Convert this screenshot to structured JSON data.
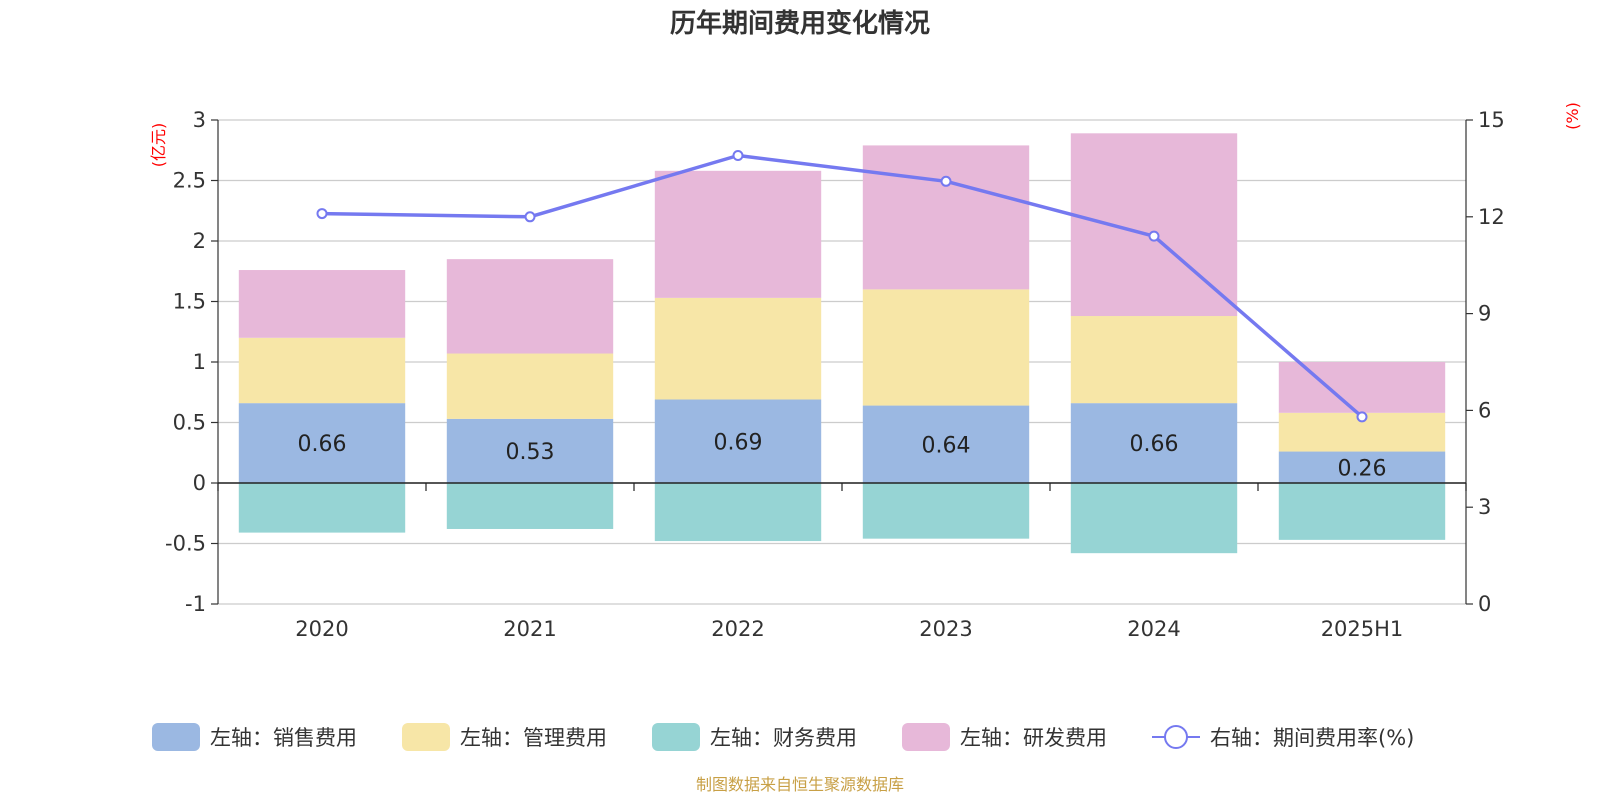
{
  "chart_data": {
    "type": "bar",
    "title": "历年期间费用变化情况",
    "categories": [
      "2020",
      "2021",
      "2022",
      "2023",
      "2024",
      "2025H1"
    ],
    "left_axis": {
      "unit": "(亿元)",
      "ylim": [
        -1,
        3
      ],
      "ticks": [
        "-1",
        "-0.5",
        "0",
        "0.5",
        "1",
        "1.5",
        "2",
        "2.5",
        "3"
      ]
    },
    "right_axis": {
      "unit": "(%)",
      "ylim": [
        0,
        15
      ],
      "ticks": [
        "0",
        "3",
        "6",
        "9",
        "12",
        "15"
      ]
    },
    "series": [
      {
        "name": "左轴：销售费用",
        "type": "bar",
        "stack": "pos",
        "color": "#9bb8e2",
        "values": [
          0.66,
          0.53,
          0.69,
          0.64,
          0.66,
          0.26
        ],
        "labels": [
          "0.66",
          "0.53",
          "0.69",
          "0.64",
          "0.66",
          "0.26"
        ]
      },
      {
        "name": "左轴：管理费用",
        "type": "bar",
        "stack": "pos",
        "color": "#f7e6a7",
        "values": [
          0.54,
          0.54,
          0.84,
          0.96,
          0.72,
          0.32
        ]
      },
      {
        "name": "左轴：财务费用",
        "type": "bar",
        "stack": "neg",
        "color": "#96d4d4",
        "values": [
          -0.41,
          -0.38,
          -0.48,
          -0.46,
          -0.58,
          -0.47
        ]
      },
      {
        "name": "左轴：研发费用",
        "type": "bar",
        "stack": "pos",
        "color": "#e7b8d9",
        "values": [
          0.56,
          0.78,
          1.05,
          1.19,
          1.51,
          0.42
        ]
      },
      {
        "name": "右轴：期间费用率(%)",
        "type": "line",
        "axis": "right",
        "color": "#7579f0",
        "values": [
          12.1,
          12.0,
          13.9,
          13.1,
          11.4,
          5.8
        ]
      }
    ],
    "legend_position": "bottom",
    "grid": true
  },
  "source_note": "制图数据来自恒生聚源数据库"
}
